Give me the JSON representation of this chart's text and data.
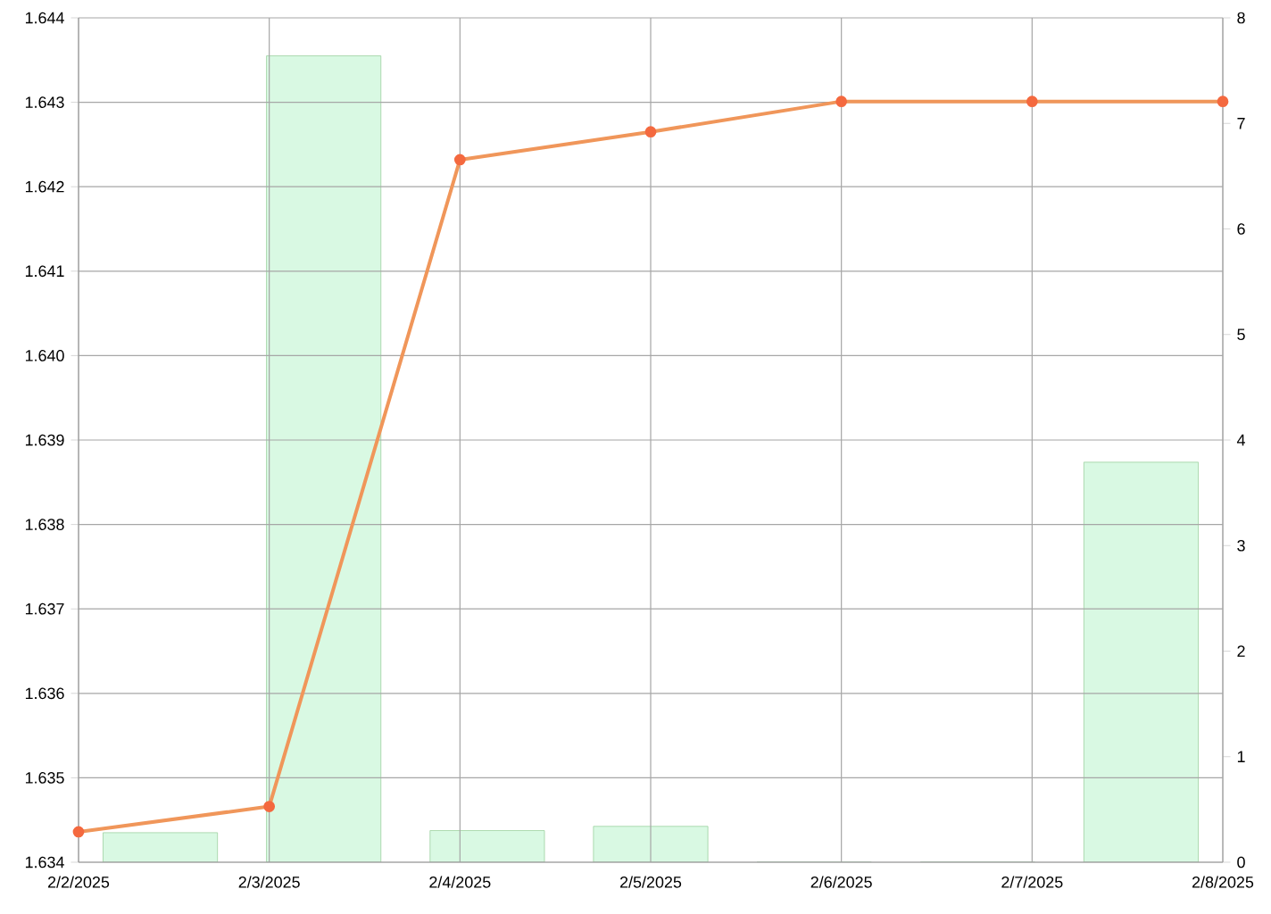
{
  "chart_data": {
    "type": "line",
    "xlim": [
      "2025-02-02",
      "2025-02-08"
    ],
    "xticks": [
      {
        "value": "2025-02-02",
        "label": "2/2/2025"
      },
      {
        "value": "2025-02-03",
        "label": "2/3/2025"
      },
      {
        "value": "2025-02-04",
        "label": "2/4/2025"
      },
      {
        "value": "2025-02-05",
        "label": "2/5/2025"
      },
      {
        "value": "2025-02-06",
        "label": "2/6/2025"
      },
      {
        "value": "2025-02-07",
        "label": "2/7/2025"
      },
      {
        "value": "2025-02-08",
        "label": "2/8/2025"
      }
    ],
    "ylim": [
      1.634,
      1.644
    ],
    "yticks": [
      {
        "value": 1.634,
        "label": "1.634"
      },
      {
        "value": 1.635,
        "label": "1.635"
      },
      {
        "value": 1.636,
        "label": "1.636"
      },
      {
        "value": 1.637,
        "label": "1.637"
      },
      {
        "value": 1.638,
        "label": "1.638"
      },
      {
        "value": 1.639,
        "label": "1.639"
      },
      {
        "value": 1.64,
        "label": "1.640"
      },
      {
        "value": 1.641,
        "label": "1.641"
      },
      {
        "value": 1.642,
        "label": "1.642"
      },
      {
        "value": 1.643,
        "label": "1.643"
      },
      {
        "value": 1.644,
        "label": "1.644"
      }
    ],
    "y2lim": [
      0,
      8
    ],
    "y2ticks": [
      0,
      1,
      2,
      3,
      4,
      5,
      6,
      7,
      8
    ],
    "grid": true,
    "marker": "circle",
    "series": [
      {
        "type": "bar",
        "axis": "y2",
        "color": "#d9f9e3",
        "x": [
          "2025-02-02T10:17",
          "2025-02-03T06:51",
          "2025-02-04T03:26",
          "2025-02-05T00:00",
          "2025-02-05T20:34",
          "2025-02-06T17:09",
          "2025-02-07T13:43"
        ],
        "values": [
          0.28,
          7.64,
          0.3,
          0.34,
          0,
          0,
          3.79
        ]
      },
      {
        "color": "#f0965a",
        "x": [
          "2025-02-02",
          "2025-02-03",
          "2025-02-04",
          "2025-02-05",
          "2025-02-06",
          "2025-02-07",
          "2025-02-08"
        ],
        "values": [
          1.63436,
          1.63466,
          1.64232,
          1.64265,
          1.64301,
          1.64301,
          1.64301
        ]
      }
    ]
  }
}
